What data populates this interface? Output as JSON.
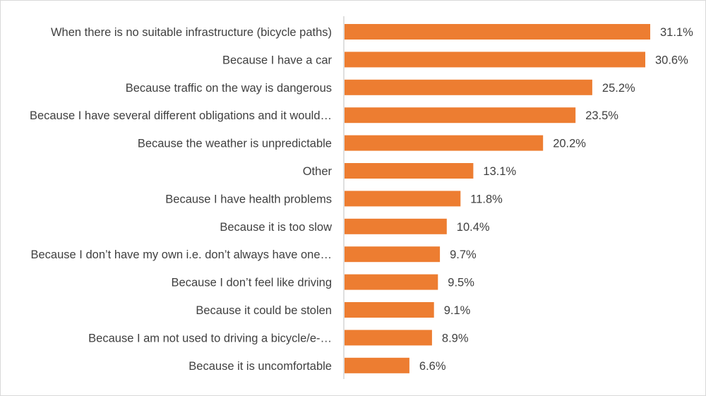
{
  "chart_data": {
    "type": "bar",
    "orientation": "horizontal",
    "categories": [
      "When there is no suitable infrastructure (bicycle paths)",
      "Because I have a car",
      "Because traffic on the way is dangerous",
      "Because I have several different obligations and it would…",
      "Because the weather is unpredictable",
      "Other",
      "Because I have health problems",
      "Because it is too slow",
      "Because I don’t have my own i.e. don’t always have one…",
      "Because I don’t feel like driving",
      "Because it could be stolen",
      "Because I am not used to driving a bicycle/e-…",
      "Because it is uncomfortable"
    ],
    "values": [
      31.1,
      30.6,
      25.2,
      23.5,
      20.2,
      13.1,
      11.8,
      10.4,
      9.7,
      9.5,
      9.1,
      8.9,
      6.6
    ],
    "value_labels": [
      "31.1%",
      "30.6%",
      "25.2%",
      "23.5%",
      "20.2%",
      "13.1%",
      "11.8%",
      "10.4%",
      "9.7%",
      "9.5%",
      "9.1%",
      "8.9%",
      "6.6%"
    ],
    "unit": "%",
    "xlim": [
      0,
      32
    ],
    "grid": false,
    "legend": "none",
    "bar_color": "#ED7D31",
    "axis_color": "#BFBFBF",
    "label_color": "#404040"
  }
}
